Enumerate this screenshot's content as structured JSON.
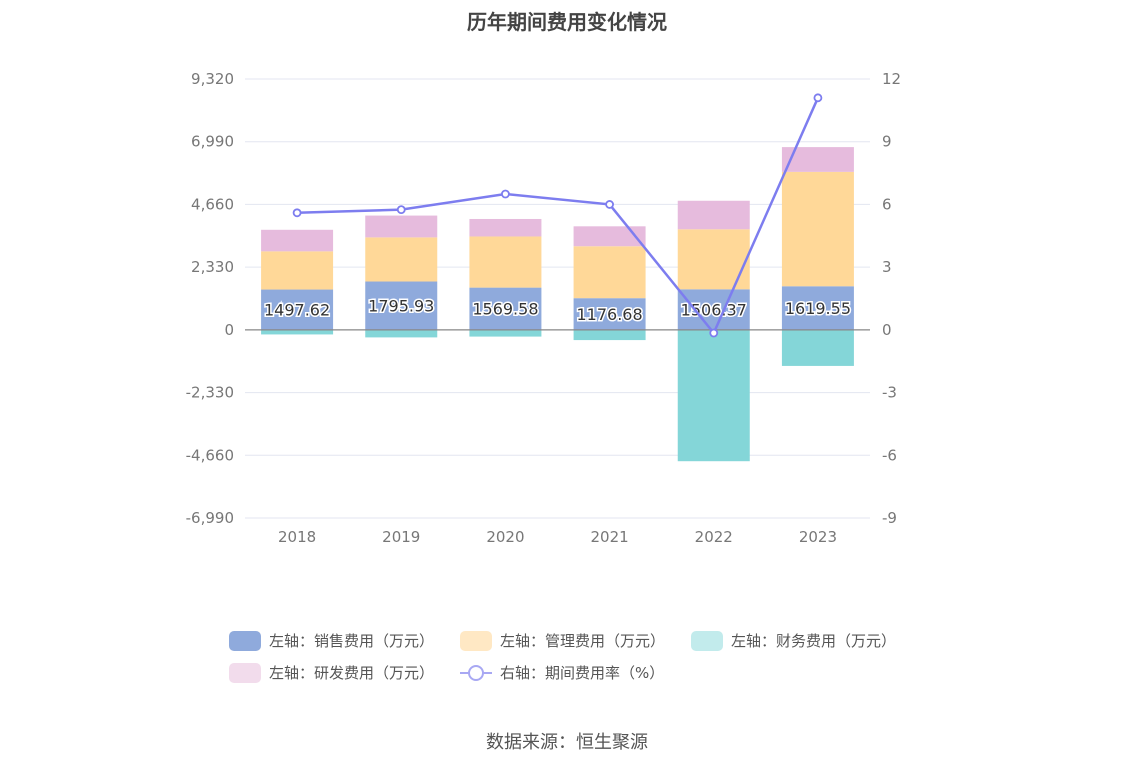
{
  "title": "历年期间费用变化情况",
  "source": "数据来源：恒生聚源",
  "chart_data": {
    "type": "bar",
    "stacked": true,
    "categories": [
      "2018",
      "2019",
      "2020",
      "2021",
      "2022",
      "2023"
    ],
    "y_left": {
      "range": [
        -6990,
        9320
      ],
      "ticks": [
        "9,320",
        "6,990",
        "4,660",
        "2,330",
        "0",
        "-2,330",
        "-4,660",
        "-6,990"
      ]
    },
    "y_right": {
      "range": [
        -9,
        12
      ],
      "ticks": [
        "12",
        "9",
        "6",
        "3",
        "0",
        "-3",
        "-6",
        "-9"
      ]
    },
    "series": [
      {
        "name": "左轴：销售费用（万元）",
        "axis": "left",
        "color": "#8faadc",
        "values": [
          1497.62,
          1795.93,
          1569.58,
          1176.68,
          1506.37,
          1619.55
        ],
        "labels": [
          "1497.62",
          "1795.93",
          "1569.58",
          "1176.68",
          "1506.37",
          "1619.55"
        ]
      },
      {
        "name": "左轴：管理费用（万元）",
        "axis": "left",
        "color": "#ffd898",
        "values": [
          1420,
          1640,
          1900,
          1930,
          2230,
          4250
        ]
      },
      {
        "name": "左轴：财务费用（万元）",
        "axis": "left",
        "color": "#84d6d8",
        "values": [
          -170,
          -280,
          -250,
          -380,
          -4880,
          -1340
        ]
      },
      {
        "name": "左轴：研发费用（万元）",
        "axis": "left",
        "color": "#e6bbdd",
        "values": [
          800,
          810,
          650,
          740,
          1060,
          920
        ]
      },
      {
        "name": "右轴：期间费用率（%）",
        "axis": "right",
        "type": "line",
        "color": "#7d7def",
        "values": [
          5.6,
          5.75,
          6.5,
          6.0,
          -0.15,
          11.1
        ]
      }
    ],
    "legend_placement": "bottom",
    "grid": true
  }
}
